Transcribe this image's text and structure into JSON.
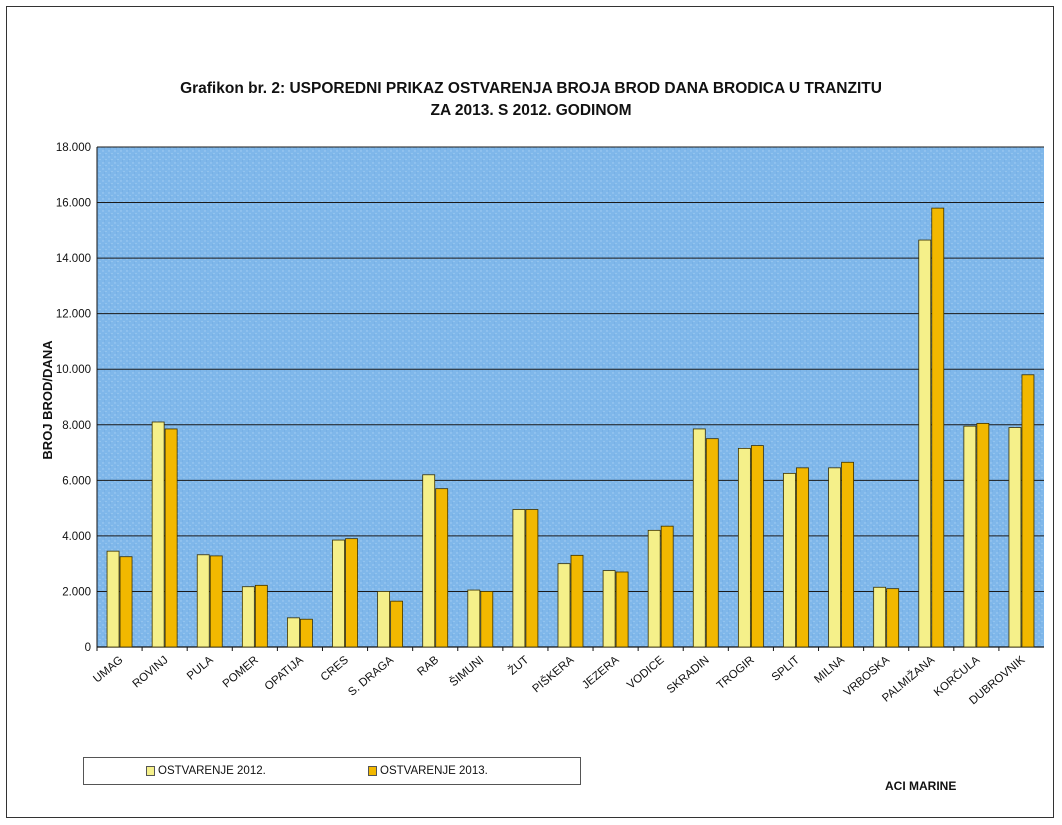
{
  "chart_data": {
    "type": "bar",
    "title_line1": "Grafikon br. 2: USPOREDNI PRIKAZ OSTVARENJA BROJA BROD DANA BRODICA U TRANZITU",
    "title_line2": "ZA 2013. S 2012. GODINOM",
    "xlabel": "",
    "ylabel": "BROJ BROD/DANA",
    "ylim": [
      0,
      18000
    ],
    "yticks": [
      0,
      2000,
      4000,
      6000,
      8000,
      10000,
      12000,
      14000,
      16000,
      18000
    ],
    "ytick_labels": [
      "0",
      "2.000",
      "4.000",
      "6.000",
      "8.000",
      "10.000",
      "12.000",
      "14.000",
      "16.000",
      "18.000"
    ],
    "grid": true,
    "legend_position": "bottom-left",
    "categories": [
      "UMAG",
      "ROVINJ",
      "PULA",
      "POMER",
      "OPATIJA",
      "CRES",
      "S. DRAGA",
      "RAB",
      "ŠIMUNI",
      "ŽUT",
      "PIŠKERA",
      "JEZERA",
      "VODICE",
      "SKRADIN",
      "TROGIR",
      "SPLIT",
      "MILNA",
      "VRBOSKA",
      "PALMIŽANA",
      "KORČULA",
      "DUBROVNIK"
    ],
    "series": [
      {
        "name": "OSTVARENJE  2012.",
        "color": "#f5f08a",
        "values": [
          3450,
          8100,
          3320,
          2170,
          1050,
          3850,
          2000,
          6200,
          2050,
          4950,
          3000,
          2750,
          4200,
          7850,
          7150,
          6250,
          6450,
          2150,
          14650,
          7950,
          7900
        ]
      },
      {
        "name": "OSTVARENJE 2013.",
        "color": "#f2b800",
        "values": [
          3250,
          7850,
          3280,
          2220,
          1000,
          3900,
          1650,
          5700,
          2000,
          4950,
          3300,
          2700,
          4350,
          7500,
          7250,
          6450,
          6650,
          2100,
          15800,
          8050,
          9800
        ]
      }
    ]
  },
  "legend": {
    "item_2012": "OSTVARENJE  2012.",
    "item_2013": "OSTVARENJE 2013."
  },
  "credit": "ACI MARINE"
}
